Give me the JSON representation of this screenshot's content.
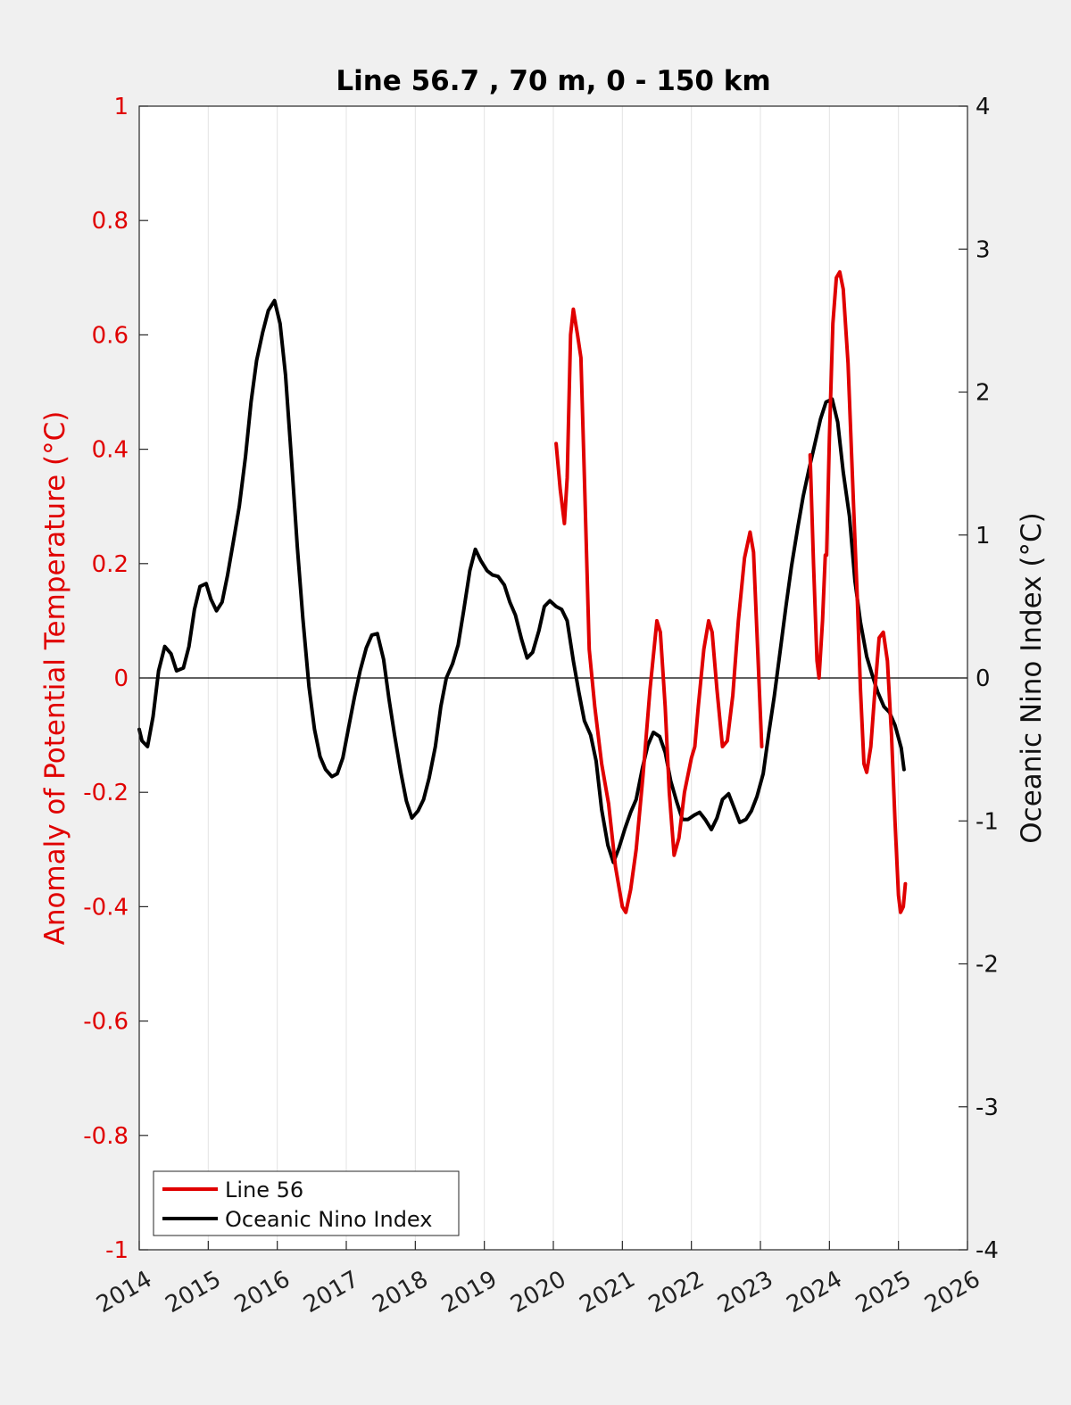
{
  "chart_data": {
    "type": "line",
    "title": "Line 56.7 , 70 m, 0 - 150 km",
    "xlabel": "",
    "ylabel_left": "Anomaly of Potential Temperature (°C)",
    "ylabel_right": "Oceanic Nino Index (°C)",
    "xlim": [
      2014,
      2026
    ],
    "ylim_left": [
      -1,
      1
    ],
    "ylim_right": [
      -4,
      4
    ],
    "x_ticks": [
      "2014",
      "2015",
      "2016",
      "2017",
      "2018",
      "2019",
      "2020",
      "2021",
      "2022",
      "2023",
      "2024",
      "2025",
      "2026"
    ],
    "y_left_ticks": [
      "-1",
      "-0.8",
      "-0.6",
      "-0.4",
      "-0.2",
      "0",
      "0.2",
      "0.4",
      "0.6",
      "0.8",
      "1"
    ],
    "y_right_ticks": [
      "-4",
      "-3",
      "-2",
      "-1",
      "0",
      "1",
      "2",
      "3",
      "4"
    ],
    "grid": "vertical",
    "legend_position": "bottom-left",
    "colors": {
      "line56": "#e00000",
      "oni": "#000000",
      "left_axis": "#e00000",
      "right_axis": "#111111"
    },
    "series": [
      {
        "name": "Line 56",
        "axis": "left",
        "color": "#e00000",
        "segments": [
          [
            [
              2020.04,
              0.41
            ],
            [
              2020.1,
              0.33
            ],
            [
              2020.16,
              0.27
            ],
            [
              2020.2,
              0.35
            ],
            [
              2020.25,
              0.6
            ],
            [
              2020.29,
              0.645
            ],
            [
              2020.35,
              0.6
            ],
            [
              2020.4,
              0.56
            ],
            [
              2020.45,
              0.35
            ],
            [
              2020.52,
              0.05
            ],
            [
              2020.6,
              -0.05
            ],
            [
              2020.7,
              -0.15
            ],
            [
              2020.8,
              -0.22
            ],
            [
              2020.9,
              -0.33
            ],
            [
              2021.0,
              -0.4
            ],
            [
              2021.05,
              -0.41
            ],
            [
              2021.12,
              -0.37
            ],
            [
              2021.2,
              -0.3
            ],
            [
              2021.3,
              -0.17
            ],
            [
              2021.4,
              -0.02
            ],
            [
              2021.5,
              0.1
            ],
            [
              2021.55,
              0.08
            ],
            [
              2021.62,
              -0.05
            ],
            [
              2021.68,
              -0.2
            ],
            [
              2021.75,
              -0.31
            ],
            [
              2021.82,
              -0.28
            ],
            [
              2021.9,
              -0.2
            ],
            [
              2022.0,
              -0.14
            ],
            [
              2022.05,
              -0.12
            ],
            [
              2022.1,
              -0.05
            ],
            [
              2022.18,
              0.05
            ],
            [
              2022.25,
              0.1
            ],
            [
              2022.3,
              0.08
            ],
            [
              2022.37,
              -0.02
            ],
            [
              2022.45,
              -0.12
            ],
            [
              2022.52,
              -0.11
            ],
            [
              2022.6,
              -0.03
            ],
            [
              2022.68,
              0.1
            ],
            [
              2022.77,
              0.21
            ],
            [
              2022.85,
              0.255
            ],
            [
              2022.9,
              0.22
            ],
            [
              2022.95,
              0.08
            ],
            [
              2023.02,
              -0.12
            ]
          ],
          [
            [
              2023.72,
              0.39
            ],
            [
              2023.77,
              0.2
            ],
            [
              2023.82,
              0.03
            ],
            [
              2023.85,
              0.0
            ],
            [
              2023.9,
              0.1
            ],
            [
              2023.94,
              0.215
            ],
            [
              2023.96,
              0.215
            ],
            [
              2024.0,
              0.42
            ],
            [
              2024.05,
              0.62
            ],
            [
              2024.1,
              0.7
            ],
            [
              2024.15,
              0.71
            ],
            [
              2024.2,
              0.68
            ],
            [
              2024.27,
              0.55
            ],
            [
              2024.35,
              0.3
            ],
            [
              2024.4,
              0.15
            ],
            [
              2024.45,
              -0.02
            ],
            [
              2024.5,
              -0.15
            ],
            [
              2024.54,
              -0.165
            ],
            [
              2024.6,
              -0.12
            ],
            [
              2024.66,
              -0.02
            ],
            [
              2024.72,
              0.07
            ],
            [
              2024.78,
              0.08
            ],
            [
              2024.84,
              0.03
            ],
            [
              2024.9,
              -0.1
            ],
            [
              2024.95,
              -0.25
            ],
            [
              2025.0,
              -0.38
            ],
            [
              2025.03,
              -0.41
            ],
            [
              2025.07,
              -0.4
            ],
            [
              2025.1,
              -0.36
            ]
          ]
        ]
      },
      {
        "name": "Oceanic Nino Index",
        "axis": "right",
        "color": "#000000",
        "segments": [
          [
            [
              2014.0,
              -0.36
            ],
            [
              2014.04,
              -0.44
            ],
            [
              2014.12,
              -0.48
            ],
            [
              2014.2,
              -0.27
            ],
            [
              2014.28,
              0.05
            ],
            [
              2014.37,
              0.22
            ],
            [
              2014.46,
              0.17
            ],
            [
              2014.54,
              0.05
            ],
            [
              2014.64,
              0.07
            ],
            [
              2014.72,
              0.22
            ],
            [
              2014.8,
              0.48
            ],
            [
              2014.88,
              0.64
            ],
            [
              2014.97,
              0.66
            ],
            [
              2015.04,
              0.55
            ],
            [
              2015.12,
              0.47
            ],
            [
              2015.2,
              0.53
            ],
            [
              2015.28,
              0.72
            ],
            [
              2015.37,
              0.97
            ],
            [
              2015.45,
              1.2
            ],
            [
              2015.54,
              1.55
            ],
            [
              2015.62,
              1.93
            ],
            [
              2015.7,
              2.22
            ],
            [
              2015.79,
              2.42
            ],
            [
              2015.87,
              2.57
            ],
            [
              2015.96,
              2.64
            ],
            [
              2016.04,
              2.48
            ],
            [
              2016.12,
              2.12
            ],
            [
              2016.21,
              1.5
            ],
            [
              2016.29,
              0.92
            ],
            [
              2016.37,
              0.42
            ],
            [
              2016.46,
              -0.06
            ],
            [
              2016.54,
              -0.36
            ],
            [
              2016.62,
              -0.55
            ],
            [
              2016.7,
              -0.64
            ],
            [
              2016.79,
              -0.69
            ],
            [
              2016.87,
              -0.67
            ],
            [
              2016.95,
              -0.56
            ],
            [
              2017.04,
              -0.33
            ],
            [
              2017.12,
              -0.13
            ],
            [
              2017.2,
              0.05
            ],
            [
              2017.29,
              0.21
            ],
            [
              2017.37,
              0.3
            ],
            [
              2017.45,
              0.31
            ],
            [
              2017.54,
              0.13
            ],
            [
              2017.62,
              -0.15
            ],
            [
              2017.7,
              -0.4
            ],
            [
              2017.79,
              -0.66
            ],
            [
              2017.87,
              -0.86
            ],
            [
              2017.95,
              -0.98
            ],
            [
              2018.04,
              -0.93
            ],
            [
              2018.12,
              -0.85
            ],
            [
              2018.2,
              -0.7
            ],
            [
              2018.29,
              -0.48
            ],
            [
              2018.37,
              -0.2
            ],
            [
              2018.45,
              0.0
            ],
            [
              2018.54,
              0.1
            ],
            [
              2018.62,
              0.23
            ],
            [
              2018.7,
              0.47
            ],
            [
              2018.79,
              0.75
            ],
            [
              2018.87,
              0.9
            ],
            [
              2018.95,
              0.82
            ],
            [
              2019.04,
              0.75
            ],
            [
              2019.12,
              0.72
            ],
            [
              2019.2,
              0.71
            ],
            [
              2019.29,
              0.65
            ],
            [
              2019.37,
              0.53
            ],
            [
              2019.45,
              0.44
            ],
            [
              2019.54,
              0.27
            ],
            [
              2019.62,
              0.14
            ],
            [
              2019.7,
              0.18
            ],
            [
              2019.79,
              0.33
            ],
            [
              2019.87,
              0.5
            ],
            [
              2019.95,
              0.54
            ],
            [
              2020.04,
              0.5
            ],
            [
              2020.12,
              0.48
            ],
            [
              2020.2,
              0.4
            ],
            [
              2020.29,
              0.12
            ],
            [
              2020.37,
              -0.1
            ],
            [
              2020.45,
              -0.3
            ],
            [
              2020.54,
              -0.4
            ],
            [
              2020.62,
              -0.58
            ],
            [
              2020.7,
              -0.92
            ],
            [
              2020.79,
              -1.17
            ],
            [
              2020.87,
              -1.29
            ],
            [
              2020.95,
              -1.19
            ],
            [
              2021.04,
              -1.05
            ],
            [
              2021.12,
              -0.94
            ],
            [
              2021.2,
              -0.85
            ],
            [
              2021.29,
              -0.63
            ],
            [
              2021.37,
              -0.47
            ],
            [
              2021.45,
              -0.38
            ],
            [
              2021.54,
              -0.41
            ],
            [
              2021.62,
              -0.52
            ],
            [
              2021.7,
              -0.72
            ],
            [
              2021.79,
              -0.87
            ],
            [
              2021.87,
              -0.99
            ],
            [
              2021.95,
              -0.99
            ],
            [
              2022.04,
              -0.96
            ],
            [
              2022.12,
              -0.94
            ],
            [
              2022.2,
              -0.99
            ],
            [
              2022.29,
              -1.06
            ],
            [
              2022.37,
              -0.98
            ],
            [
              2022.45,
              -0.85
            ],
            [
              2022.54,
              -0.81
            ],
            [
              2022.62,
              -0.91
            ],
            [
              2022.7,
              -1.01
            ],
            [
              2022.79,
              -0.99
            ],
            [
              2022.87,
              -0.93
            ],
            [
              2022.95,
              -0.83
            ],
            [
              2023.04,
              -0.67
            ],
            [
              2023.12,
              -0.39
            ],
            [
              2023.2,
              -0.13
            ],
            [
              2023.29,
              0.2
            ],
            [
              2023.37,
              0.5
            ],
            [
              2023.45,
              0.78
            ],
            [
              2023.54,
              1.05
            ],
            [
              2023.62,
              1.27
            ],
            [
              2023.7,
              1.45
            ],
            [
              2023.79,
              1.64
            ],
            [
              2023.87,
              1.81
            ],
            [
              2023.95,
              1.93
            ],
            [
              2024.04,
              1.95
            ],
            [
              2024.12,
              1.79
            ],
            [
              2024.2,
              1.44
            ],
            [
              2024.29,
              1.13
            ],
            [
              2024.37,
              0.68
            ],
            [
              2024.45,
              0.39
            ],
            [
              2024.54,
              0.15
            ],
            [
              2024.62,
              0.02
            ],
            [
              2024.7,
              -0.1
            ],
            [
              2024.79,
              -0.2
            ],
            [
              2024.87,
              -0.24
            ],
            [
              2024.95,
              -0.33
            ],
            [
              2025.04,
              -0.49
            ],
            [
              2025.08,
              -0.64
            ]
          ]
        ]
      }
    ]
  }
}
